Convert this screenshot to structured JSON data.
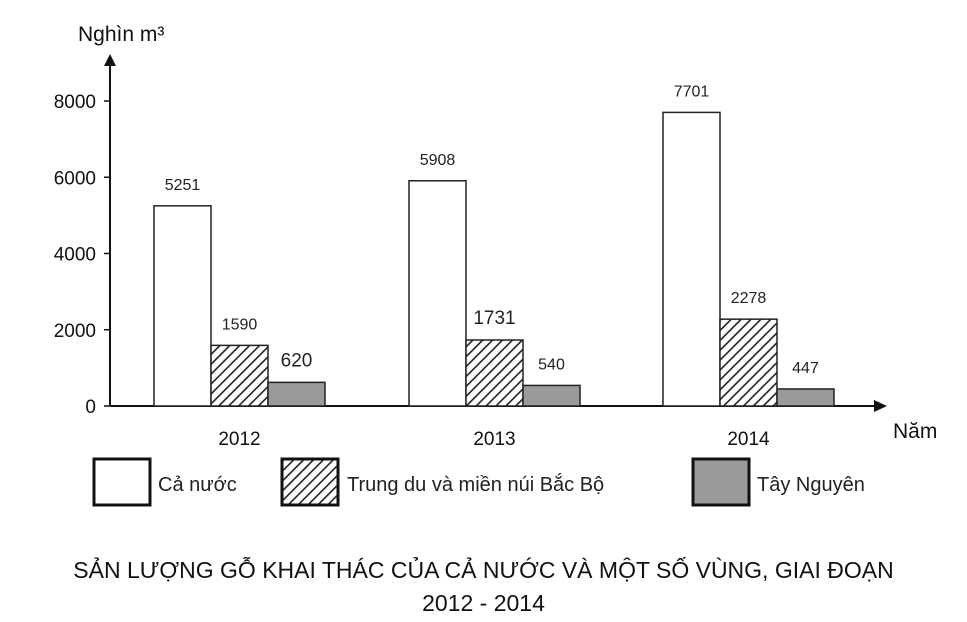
{
  "chart_data": {
    "type": "bar",
    "title": "SẢN LƯỢNG GỖ KHAI THÁC CỦA CẢ NƯỚC VÀ MỘT SỐ VÙNG, GIAI ĐOẠN",
    "title_line2": "2012 - 2014",
    "ylabel": "Nghìn m³",
    "xlabel": "Năm",
    "categories": [
      "2012",
      "2013",
      "2014"
    ],
    "yticks": [
      "0",
      "2000",
      "4000",
      "6000",
      "8000"
    ],
    "ylim": [
      0,
      8000
    ],
    "grid": false,
    "legend_position": "bottom",
    "series": [
      {
        "name": "Cả nước",
        "values": [
          5251,
          5908,
          7701
        ],
        "labels": [
          "5251",
          "5908",
          "7701"
        ],
        "fill": "white"
      },
      {
        "name": "Trung du và miền núi Bắc Bộ",
        "values": [
          1590,
          1731,
          2278
        ],
        "labels": [
          "1590",
          "1731",
          "2278"
        ],
        "fill": "hatched"
      },
      {
        "name": "Tây Nguyên",
        "values": [
          620,
          540,
          447
        ],
        "labels": [
          "620",
          "540",
          "447"
        ],
        "fill": "gray"
      }
    ],
    "colors": {
      "gray": "#9a9a9a",
      "outline": "#222222",
      "background": "#ffffff"
    }
  }
}
